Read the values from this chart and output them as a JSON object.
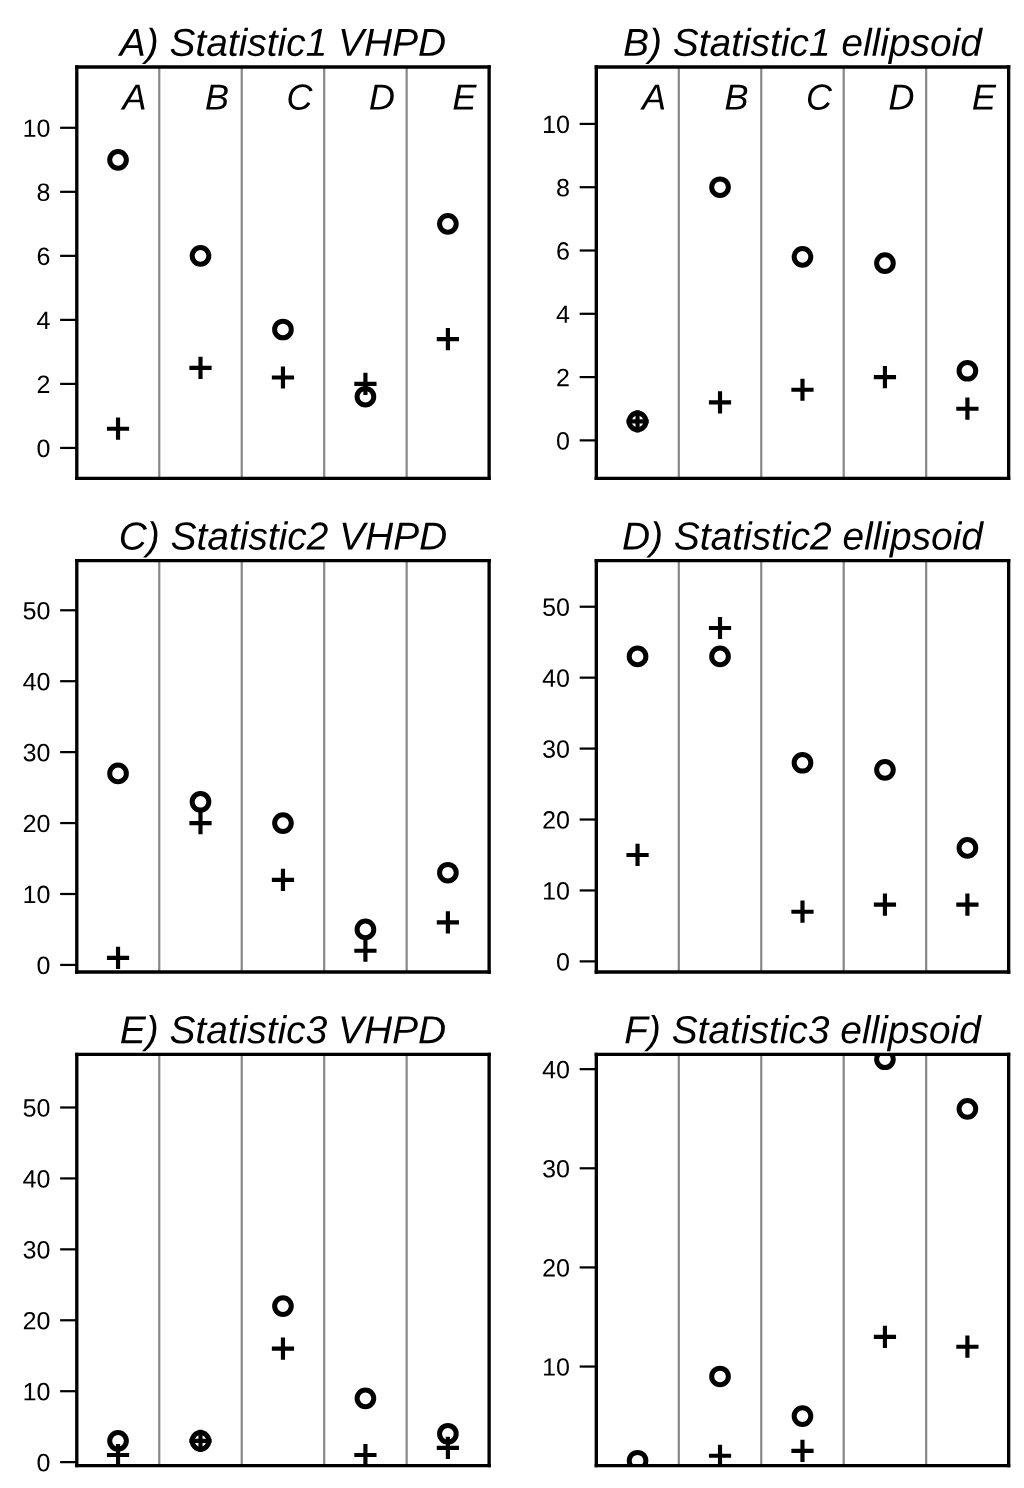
{
  "chart_data": [
    {
      "type": "scatter",
      "title": "A) Statistic1 VHPD",
      "categories": [
        "A",
        "B",
        "C",
        "D",
        "E"
      ],
      "ylim": [
        -0.95,
        11.9
      ],
      "yticks": [
        0,
        2,
        4,
        6,
        8,
        10
      ],
      "series": [
        {
          "color": "#000000",
          "marker": "circle",
          "values": [
            9,
            6,
            3.7,
            1.6,
            7
          ]
        },
        {
          "color": "#000000",
          "marker": "cross",
          "values": [
            0.6,
            2.5,
            2.2,
            2,
            3.4
          ]
        }
      ]
    },
    {
      "type": "scatter",
      "title": "B) Statistic1 ellipsoid",
      "categories": [
        "A",
        "B",
        "C",
        "D",
        "E"
      ],
      "ylim": [
        -1.2,
        11.8
      ],
      "yticks": [
        0,
        2,
        4,
        6,
        8,
        10
      ],
      "series": [
        {
          "color": "#000000",
          "marker": "circle",
          "values": [
            0.6,
            8,
            5.8,
            5.6,
            2.2
          ]
        },
        {
          "color": "#000000",
          "marker": "cross",
          "values": [
            0.6,
            1.2,
            1.6,
            2,
            1
          ]
        }
      ]
    },
    {
      "type": "scatter",
      "title": "C) Statistic2 VHPD",
      "categories": [
        null,
        null,
        null,
        null,
        null
      ],
      "ylim": [
        -1,
        57
      ],
      "yticks": [
        0,
        10,
        20,
        30,
        40,
        50
      ],
      "series": [
        {
          "color": "#000000",
          "marker": "circle",
          "values": [
            27,
            23,
            20,
            5,
            13
          ]
        },
        {
          "color": "#000000",
          "marker": "cross",
          "values": [
            1,
            20,
            12,
            2,
            6
          ]
        }
      ]
    },
    {
      "type": "scatter",
      "title": "D) Statistic2 ellipsoid",
      "categories": [
        null,
        null,
        null,
        null,
        null
      ],
      "ylim": [
        -1.5,
        56.5
      ],
      "yticks": [
        0,
        10,
        20,
        30,
        40,
        50
      ],
      "series": [
        {
          "color": "#000000",
          "marker": "circle",
          "values": [
            43,
            43,
            28,
            27,
            16
          ]
        },
        {
          "color": "#000000",
          "marker": "cross",
          "values": [
            15,
            47,
            7,
            8,
            8
          ]
        }
      ]
    },
    {
      "type": "scatter",
      "title": "E) Statistic3 VHPD",
      "categories": [
        null,
        null,
        null,
        null,
        null
      ],
      "ylim": [
        -0.5,
        57.5
      ],
      "yticks": [
        0,
        10,
        20,
        30,
        40,
        50
      ],
      "series": [
        {
          "color": "#000000",
          "marker": "circle",
          "values": [
            3,
            3,
            22,
            9,
            4
          ]
        },
        {
          "color": "#000000",
          "marker": "cross",
          "values": [
            1,
            3,
            16,
            1,
            2
          ]
        }
      ]
    },
    {
      "type": "scatter",
      "title": "F) Statistic3 ellipsoid",
      "categories": [
        null,
        null,
        null,
        null,
        null
      ],
      "ylim": [
        0,
        41.5
      ],
      "yticks": [
        10,
        20,
        30,
        40
      ],
      "series": [
        {
          "color": "#000000",
          "marker": "circle",
          "values": [
            0.5,
            9,
            5,
            41,
            36
          ]
        },
        {
          "color": "#000000",
          "marker": "cross",
          "values": [
            null,
            1,
            1.5,
            13,
            12
          ]
        }
      ]
    }
  ]
}
